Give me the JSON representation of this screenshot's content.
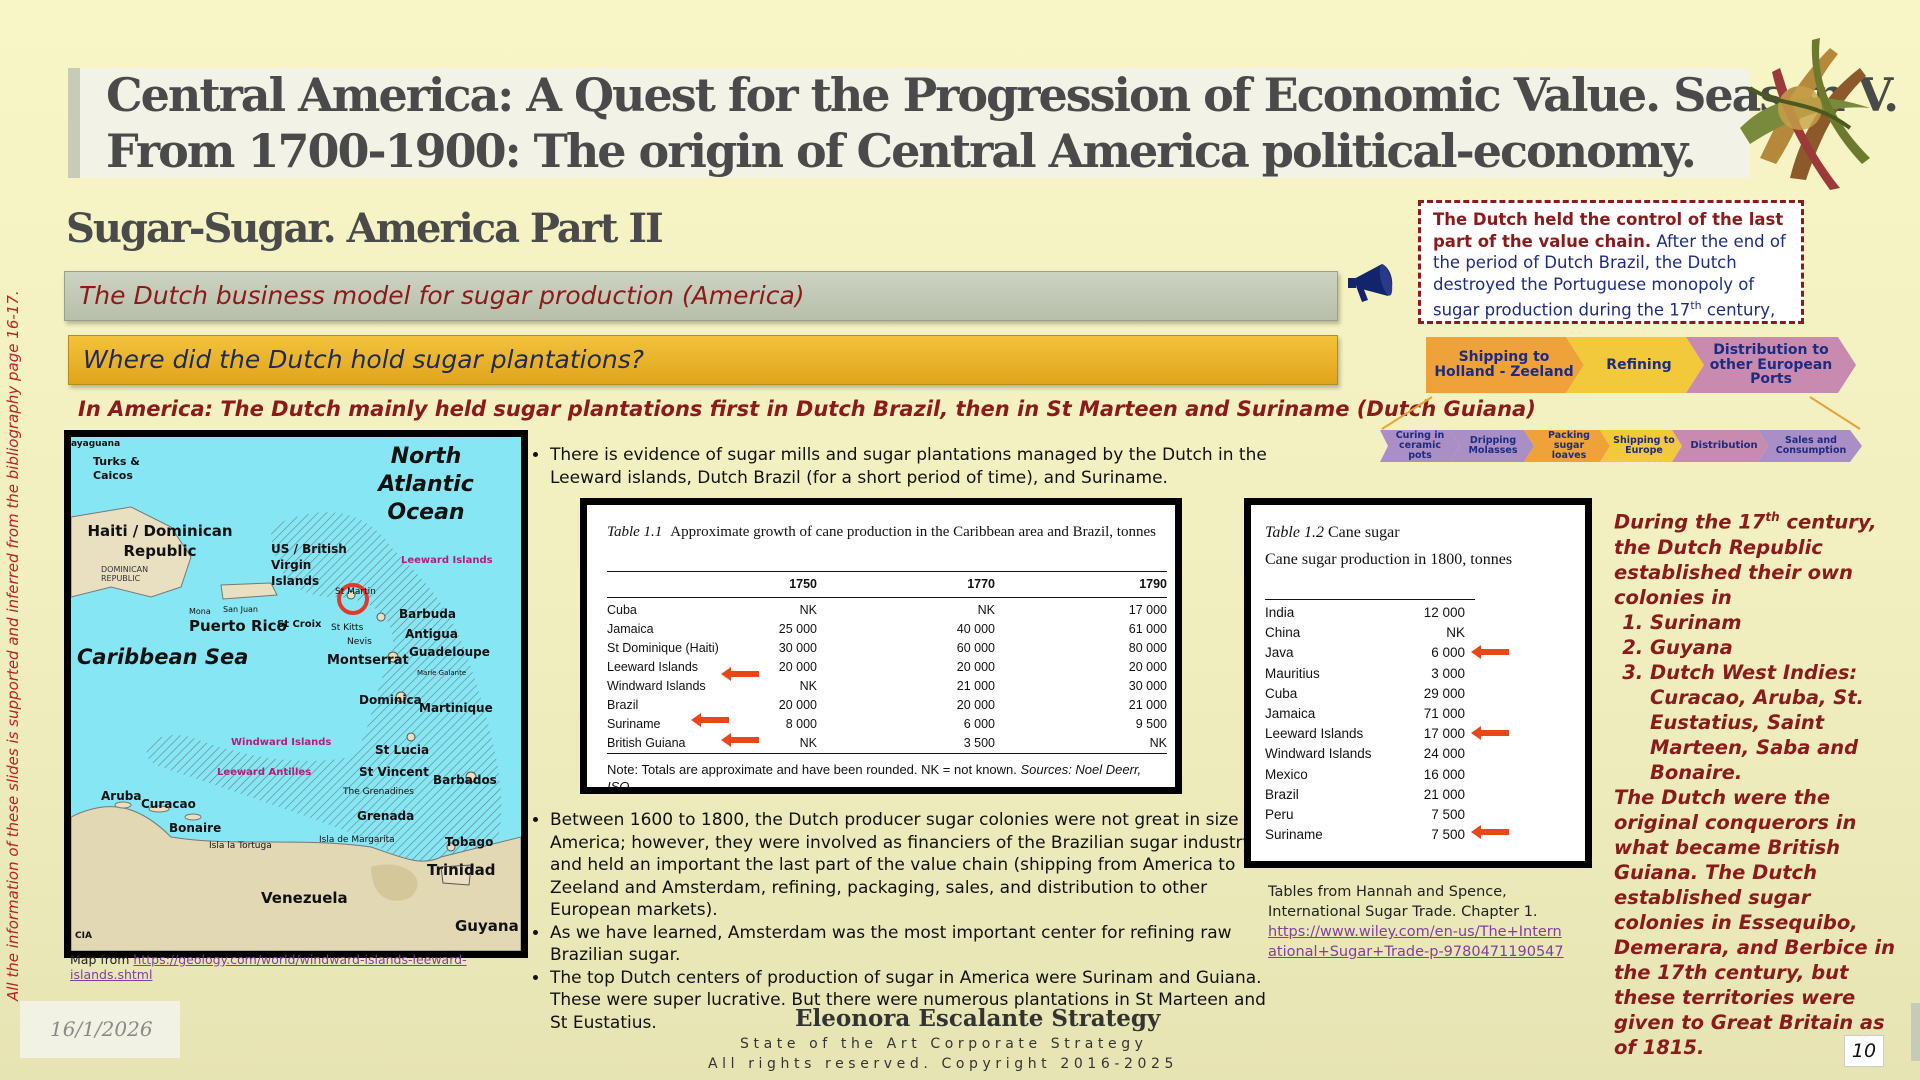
{
  "title": {
    "line1": "Central America:  A Quest for the Progression of  Economic Value. Season V.",
    "line2": "From 1700-1900: The origin of  Central America political-economy."
  },
  "side_note": "All the information of these slides is supported and inferred from the bibliography page 16-17.",
  "subtitle": "Sugar-Sugar. America Part II",
  "band1": "The Dutch business model for sugar production (America)",
  "band2": "Where did the Dutch hold sugar plantations?",
  "america_line": "In America: The Dutch mainly held sugar plantations first in Dutch Brazil, then in St Marteen and Suriname (Dutch Guiana)",
  "dutch_note": {
    "bold": "The Dutch held the control of the last part of the value chain.",
    "rest": " After the end of the period of Dutch Brazil, the Dutch destroyed the Portuguese monopoly of sugar production during the 17",
    "sup": "th",
    "end": " century,"
  },
  "value_chain_main": [
    "Shipping to Holland - Zeeland",
    "Refining",
    "Distribution to other European Ports"
  ],
  "value_chain_steps": [
    "Curing in ceramic pots",
    "Dripping Molasses",
    "Packing sugar loaves",
    "Shipping to Europe",
    "Distribution",
    "Sales and Consumption"
  ],
  "map": {
    "labels": {
      "ocean": "North Atlantic Ocean",
      "sea": "Caribbean Sea",
      "haiti": "Haiti / Dominican Republic",
      "dr": "DOMINICAN REPUBLIC",
      "turks": "Turks & Caicos",
      "mayaguana": "ayaguana",
      "puerto_rico": "Puerto Rico",
      "san_juan": "San Juan",
      "mona": "Mona",
      "virgin": "US / British Virgin Islands",
      "leeward_top": "Leeward Islands",
      "st_martin": "St Martin",
      "barbuda": "Barbuda",
      "antigua": "Antigua",
      "st_croix": "St Croix",
      "st_kitts": "St Kitts",
      "nevis": "Nevis",
      "montserrat": "Montserrat",
      "guadeloupe": "Guadeloupe",
      "marie": "Marie Galante",
      "dominica": "Dominica",
      "martinique": "Martinique",
      "windward": "Windward Islands",
      "st_lucia": "St Lucia",
      "st_vincent": "St Vincent",
      "barbados": "Barbados",
      "grenadines": "The Grenadines",
      "grenada": "Grenada",
      "leeward_antilles": "Leeward Antilles",
      "aruba": "Aruba",
      "curacao": "Curacao",
      "bonaire": "Bonaire",
      "tortuga": "Isla la Tortuga",
      "margarita": "Isla de Margarita",
      "tobago": "Tobago",
      "trinidad": "Trinidad",
      "venezuela": "Venezuela",
      "guyana": "Guyana",
      "cia": "CIA"
    }
  },
  "map_credit": {
    "prefix": "Map from ",
    "link": "https://geology.com/world/windward-islands-leeward-islands.shtml"
  },
  "bullets_a": [
    "There is evidence of sugar mills and sugar plantations managed by the Dutch in the Leeward islands, Dutch Brazil (for a short period of time), and Suriname."
  ],
  "bullets_b": [
    "Between 1600 to 1800, the Dutch producer sugar colonies were not great in size in America; however, they were involved as financiers of the Brazilian sugar industry, and held an important the last part of the value chain (shipping from America to Zeeland and Amsterdam, refining, packaging, sales, and distribution to other European markets).",
    "As we have learned, Amsterdam was the most important center for refining raw Brazilian sugar.",
    "The top Dutch centers of production of sugar in America were Surinam and Guiana. These were super lucrative. But there were numerous plantations in St Marteen and St Eustatius."
  ],
  "table1": {
    "label": "Table 1.1",
    "caption": "Approximate growth of cane production in the Caribbean area and Brazil, tonnes",
    "headers": [
      "",
      "1750",
      "1770",
      "1790"
    ],
    "rows": [
      [
        "Cuba",
        "NK",
        "NK",
        "17 000"
      ],
      [
        "Jamaica",
        "25 000",
        "40 000",
        "61 000"
      ],
      [
        "St Dominique (Haiti)",
        "30 000",
        "60 000",
        "80 000"
      ],
      [
        "Leeward Islands",
        "20 000",
        "20 000",
        "20 000"
      ],
      [
        "Windward Islands",
        "NK",
        "21 000",
        "30 000"
      ],
      [
        "Brazil",
        "20 000",
        "20 000",
        "21 000"
      ],
      [
        "Suriname",
        "8 000",
        "6 000",
        "9 500"
      ],
      [
        "British Guiana",
        "NK",
        "3 500",
        "NK"
      ]
    ],
    "note_plain": "Note: Totals are approximate and have been rounded. NK = not known. ",
    "note_italic": "Sources: Noel Deerr, ISO."
  },
  "table2": {
    "label": "Table 1.2",
    "label_rest": "Cane sugar",
    "caption": "Cane sugar production in 1800, tonnes",
    "rows": [
      [
        "India",
        "12 000"
      ],
      [
        "China",
        "NK"
      ],
      [
        "Java",
        "6 000"
      ],
      [
        "Mauritius",
        "3 000"
      ],
      [
        "Cuba",
        "29 000"
      ],
      [
        "Jamaica",
        "71 000"
      ],
      [
        "Leeward Islands",
        "17 000"
      ],
      [
        "Windward Islands",
        "24 000"
      ],
      [
        "Mexico",
        "16 000"
      ],
      [
        "Brazil",
        "21 000"
      ],
      [
        "Peru",
        "7 500"
      ],
      [
        "Suriname",
        "7 500"
      ]
    ]
  },
  "table_credit": {
    "text": "Tables from Hannah and Spence, International Sugar Trade. Chapter 1.",
    "link": "https://www.wiley.com/en-us/The+International+Sugar+Trade-p-9780471190547"
  },
  "right_text": {
    "intro_a": "During the 17",
    "intro_sup": "th",
    "intro_b": " century, the Dutch Republic established their own colonies in",
    "list": [
      "Surinam",
      "Guyana",
      "Dutch West Indies: Curacao, Aruba, St. Eustatius, Saint Marteen, Saba and Bonaire."
    ],
    "outro": "The Dutch were the original conquerors in what became British Guiana. The Dutch established sugar colonies in Essequibo, Demerara, and Berbice in the 17th century, but these territories were given to Great Britain as of 1815."
  },
  "footer": {
    "date": "16/1/2026",
    "brand": "Eleonora Escalante Strategy",
    "sub1": "State of the Art Corporate Strategy",
    "sub2": "All rights reserved. Copyright 2016-2025",
    "page": "10"
  },
  "colors": {
    "accent_red": "#8b1a1a",
    "navy": "#1d2b80",
    "band_gold": "#f4c23c",
    "arrow_orange": "#e8471a"
  }
}
